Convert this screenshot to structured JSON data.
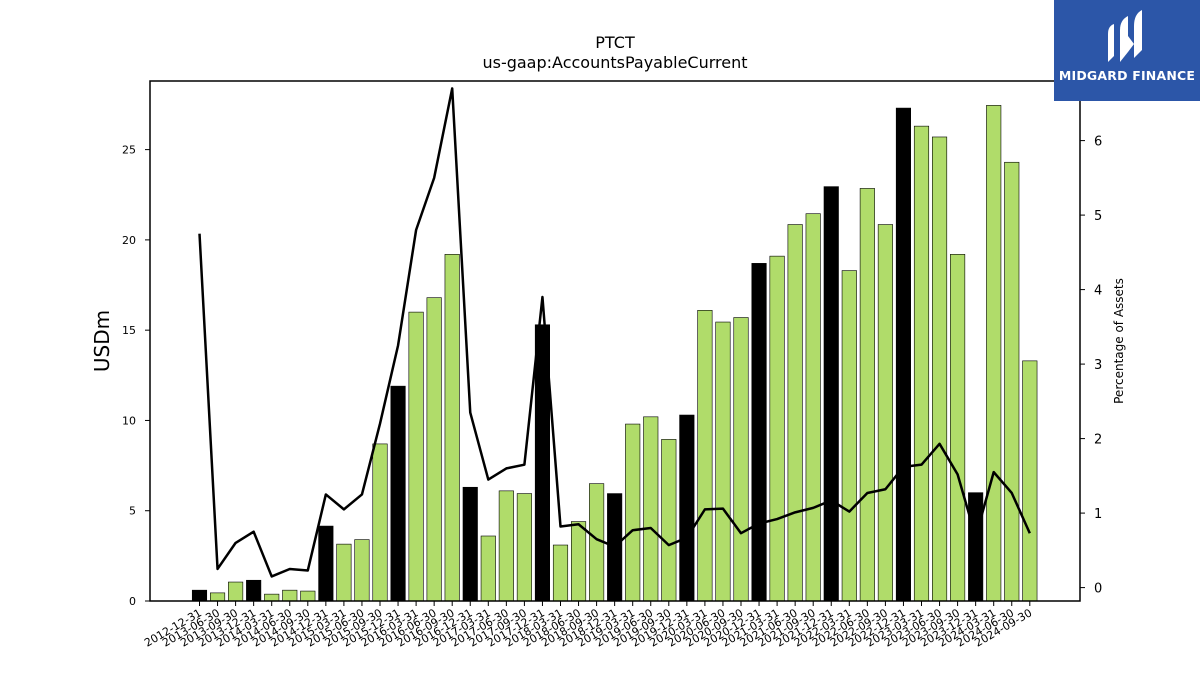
{
  "chart_data": {
    "type": "bar+line",
    "title": "PTCT",
    "subtitle": "us-gaap:AccountsPayableCurrent",
    "ylabel": "USDm",
    "y2label": "Percentage of Assets",
    "ylim": [
      0,
      28.8
    ],
    "y2lim": [
      -0.18,
      6.8
    ],
    "yticks": [
      0,
      5,
      10,
      15,
      20,
      25
    ],
    "y2ticks": [
      0,
      1,
      2,
      3,
      4,
      5,
      6
    ],
    "categories": [
      "2012-12-31",
      "2013-06-30",
      "2013-09-30",
      "2013-12-31",
      "2014-03-31",
      "2014-06-30",
      "2014-09-30",
      "2014-12-31",
      "2015-03-31",
      "2015-06-30",
      "2015-09-30",
      "2015-12-31",
      "2016-03-31",
      "2016-06-30",
      "2016-09-30",
      "2016-12-31",
      "2017-03-31",
      "2017-06-30",
      "2017-09-30",
      "2017-12-31",
      "2018-03-31",
      "2018-06-30",
      "2018-09-30",
      "2018-12-31",
      "2019-03-31",
      "2019-06-30",
      "2019-09-30",
      "2019-12-31",
      "2020-03-31",
      "2020-06-30",
      "2020-09-30",
      "2020-12-31",
      "2021-03-31",
      "2021-06-30",
      "2021-09-30",
      "2021-12-31",
      "2022-03-31",
      "2022-06-30",
      "2022-09-30",
      "2022-12-31",
      "2023-03-31",
      "2023-06-30",
      "2023-09-30",
      "2023-12-31",
      "2024-03-31",
      "2024-06-30",
      "2024-09-30"
    ],
    "series": [
      {
        "kind": "bar",
        "values": [
          0.6,
          0.45,
          1.05,
          1.15,
          0.38,
          0.6,
          0.55,
          4.15,
          3.15,
          3.4,
          8.7,
          11.9,
          16.0,
          16.8,
          19.2,
          6.3,
          3.6,
          6.1,
          5.95,
          15.3,
          3.1,
          4.4,
          6.5,
          5.95,
          9.8,
          10.2,
          8.95,
          10.3,
          16.1,
          15.45,
          15.7,
          18.7,
          19.1,
          20.85,
          21.45,
          22.95,
          18.3,
          22.85,
          20.85,
          27.3,
          26.3,
          25.7,
          19.2,
          6.0,
          27.45,
          24.3,
          13.3
        ],
        "fiscal_year_end": [
          true,
          false,
          false,
          true,
          false,
          false,
          false,
          true,
          false,
          false,
          false,
          true,
          false,
          false,
          false,
          true,
          false,
          false,
          false,
          true,
          false,
          false,
          false,
          true,
          false,
          false,
          false,
          true,
          false,
          false,
          false,
          true,
          false,
          false,
          false,
          true,
          false,
          false,
          false,
          true,
          false,
          false,
          false,
          true,
          false,
          false,
          false
        ]
      },
      {
        "kind": "line",
        "axis": "right",
        "values": [
          4.75,
          0.25,
          0.6,
          0.75,
          0.15,
          0.25,
          0.23,
          1.25,
          1.05,
          1.25,
          2.2,
          3.25,
          4.8,
          5.5,
          6.7,
          2.35,
          1.45,
          1.6,
          1.65,
          3.9,
          0.82,
          0.85,
          0.65,
          0.55,
          0.77,
          0.8,
          0.57,
          0.67,
          1.05,
          1.06,
          0.73,
          0.86,
          0.92,
          1.01,
          1.07,
          1.17,
          1.02,
          1.27,
          1.32,
          1.62,
          1.65,
          1.93,
          1.52,
          0.68,
          1.55,
          1.27,
          0.73
        ]
      }
    ],
    "colors": {
      "bar_default": "#b0dc6a",
      "bar_highlight": "#000000",
      "bar_edge": "#000000",
      "line": "#000000"
    },
    "grid": false,
    "legend": "none"
  },
  "logo": {
    "text": "MIDGARD FINANCE",
    "background": "#2c56a8",
    "icon": "midgard-logo-icon"
  }
}
